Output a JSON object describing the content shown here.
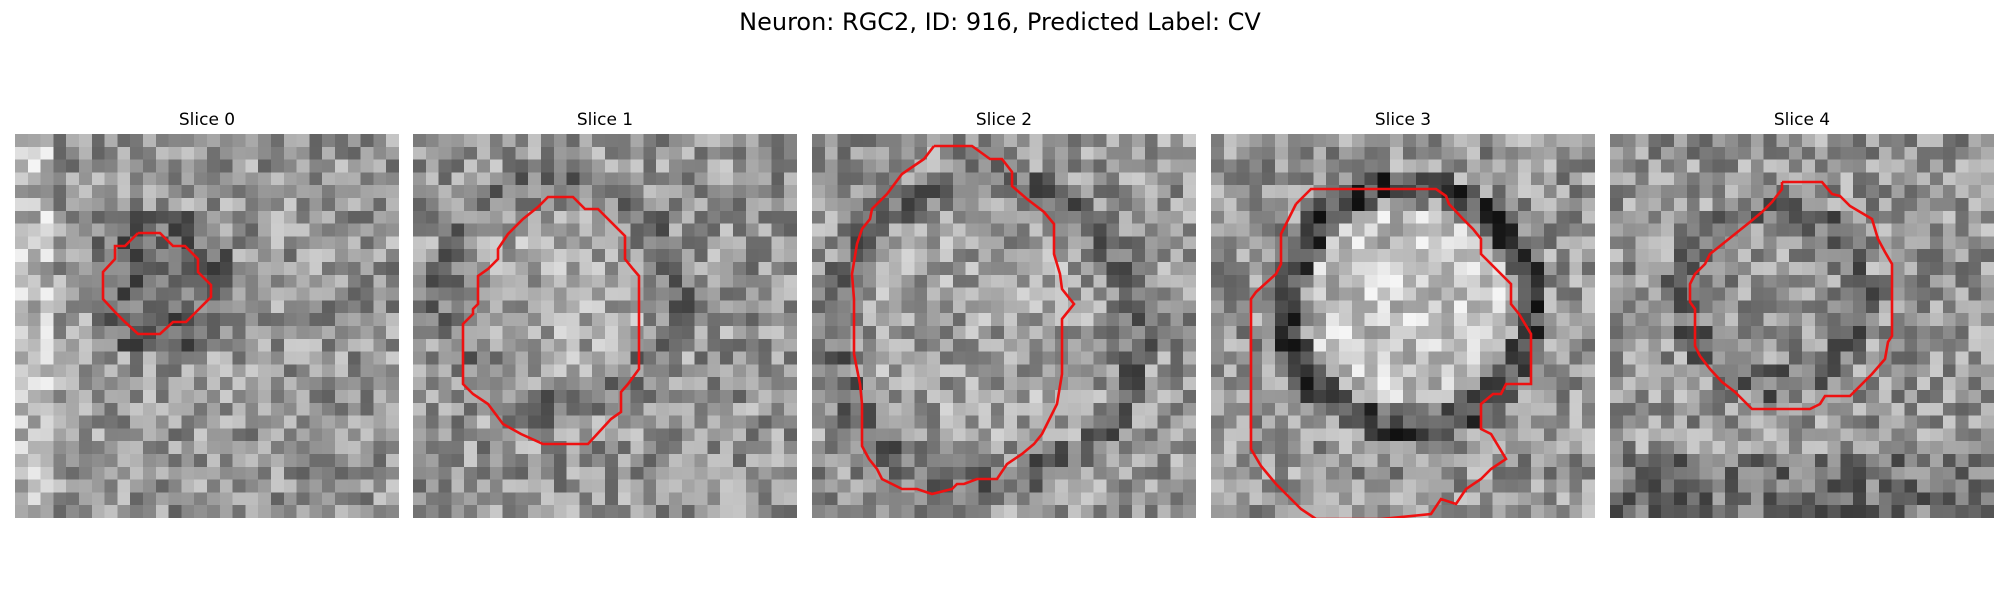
{
  "figure": {
    "title": "Neuron: RGC2, ID: 916, Predicted Label: CV",
    "contour_color": "#ee1111"
  },
  "panels": [
    {
      "title": "Slice 0",
      "tone": "dark-blob",
      "noise_seed": 11
    },
    {
      "title": "Slice 1",
      "tone": "faint-ring",
      "noise_seed": 23
    },
    {
      "title": "Slice 2",
      "tone": "large-ring",
      "noise_seed": 37
    },
    {
      "title": "Slice 3",
      "tone": "dark-ring",
      "noise_seed": 51
    },
    {
      "title": "Slice 4",
      "tone": "faint-ring-small",
      "noise_seed": 67
    }
  ]
}
